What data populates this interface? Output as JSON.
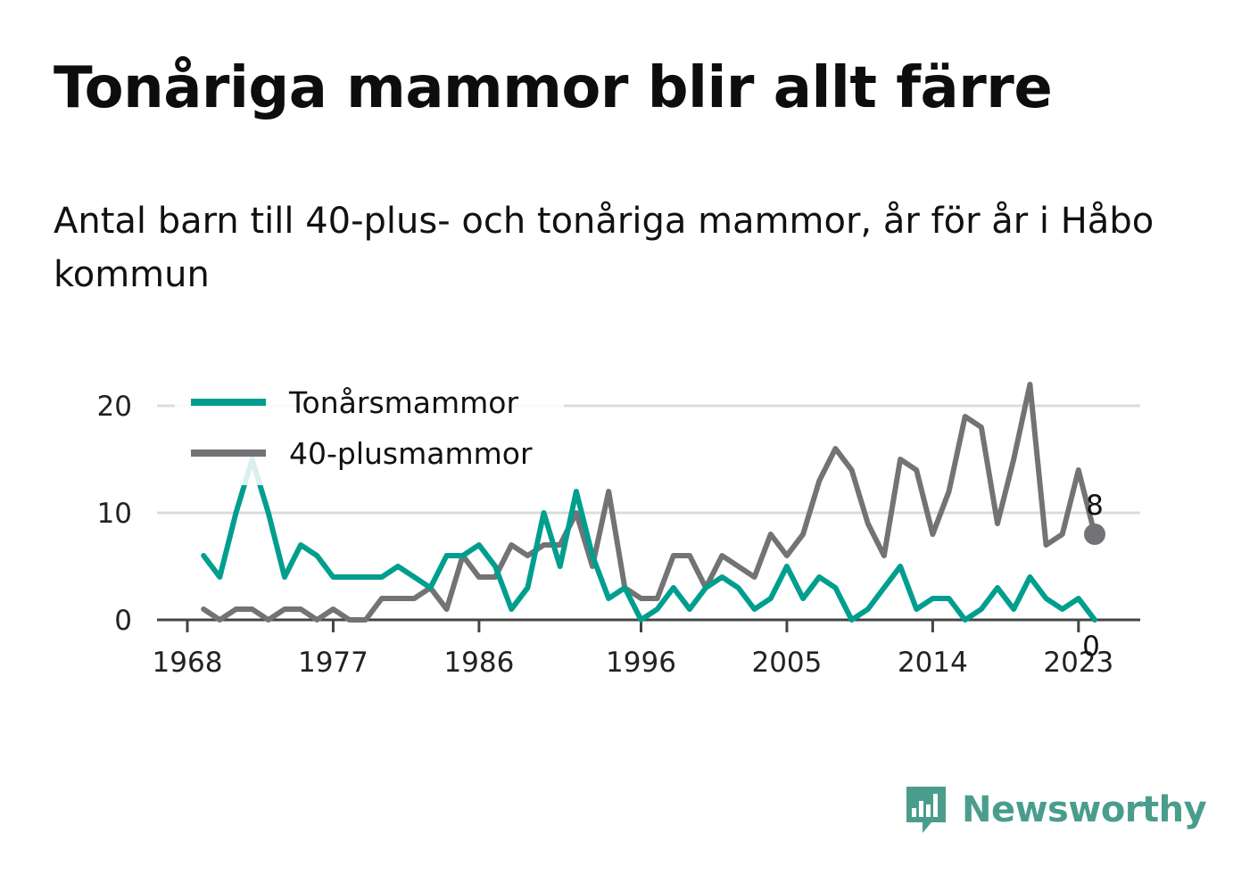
{
  "title": "Tonåriga mammor blir allt färre",
  "subtitle": "Antal barn till 40-plus- och tonåriga mammor, år för år i Håbo kommun",
  "brand": {
    "name": "Newsworthy",
    "color": "#4a9d8c",
    "icon": "newsworthy-logo-icon"
  },
  "chart_data": {
    "type": "line",
    "x_ticks": [
      1968,
      1977,
      1986,
      1996,
      2005,
      2014,
      2023
    ],
    "y_ticks": [
      0,
      10,
      20
    ],
    "xlim": [
      1968,
      2025
    ],
    "ylim": [
      0,
      22
    ],
    "grid": true,
    "legend_position": "top-left",
    "x": [
      1969,
      1970,
      1971,
      1972,
      1973,
      1974,
      1975,
      1976,
      1977,
      1978,
      1979,
      1980,
      1981,
      1982,
      1983,
      1984,
      1985,
      1986,
      1987,
      1988,
      1989,
      1990,
      1991,
      1992,
      1993,
      1994,
      1995,
      1996,
      1997,
      1998,
      1999,
      2000,
      2001,
      2002,
      2003,
      2004,
      2005,
      2006,
      2007,
      2008,
      2009,
      2010,
      2011,
      2012,
      2013,
      2014,
      2015,
      2016,
      2017,
      2018,
      2019,
      2020,
      2021,
      2022,
      2023,
      2024
    ],
    "series": [
      {
        "name": "Tonårsmammor",
        "color": "#009e8e",
        "values": [
          6,
          4,
          10,
          15,
          10,
          4,
          7,
          6,
          4,
          4,
          4,
          4,
          5,
          4,
          3,
          6,
          6,
          7,
          5,
          1,
          3,
          10,
          5,
          12,
          6,
          2,
          3,
          0,
          1,
          3,
          1,
          3,
          4,
          3,
          1,
          2,
          5,
          2,
          4,
          3,
          0,
          1,
          3,
          5,
          1,
          2,
          2,
          0,
          1,
          3,
          1,
          4,
          2,
          1,
          2,
          0
        ],
        "end_label": "0"
      },
      {
        "name": "40-plusmammor",
        "color": "#737376",
        "values": [
          1,
          0,
          1,
          1,
          0,
          1,
          1,
          0,
          1,
          0,
          0,
          2,
          2,
          2,
          3,
          1,
          6,
          4,
          4,
          7,
          6,
          7,
          7,
          10,
          5,
          12,
          3,
          2,
          2,
          6,
          6,
          3,
          6,
          5,
          4,
          8,
          6,
          8,
          13,
          16,
          14,
          9,
          6,
          15,
          14,
          8,
          12,
          19,
          18,
          9,
          15,
          22,
          7,
          8,
          14,
          8
        ],
        "end_label": "8"
      }
    ]
  }
}
